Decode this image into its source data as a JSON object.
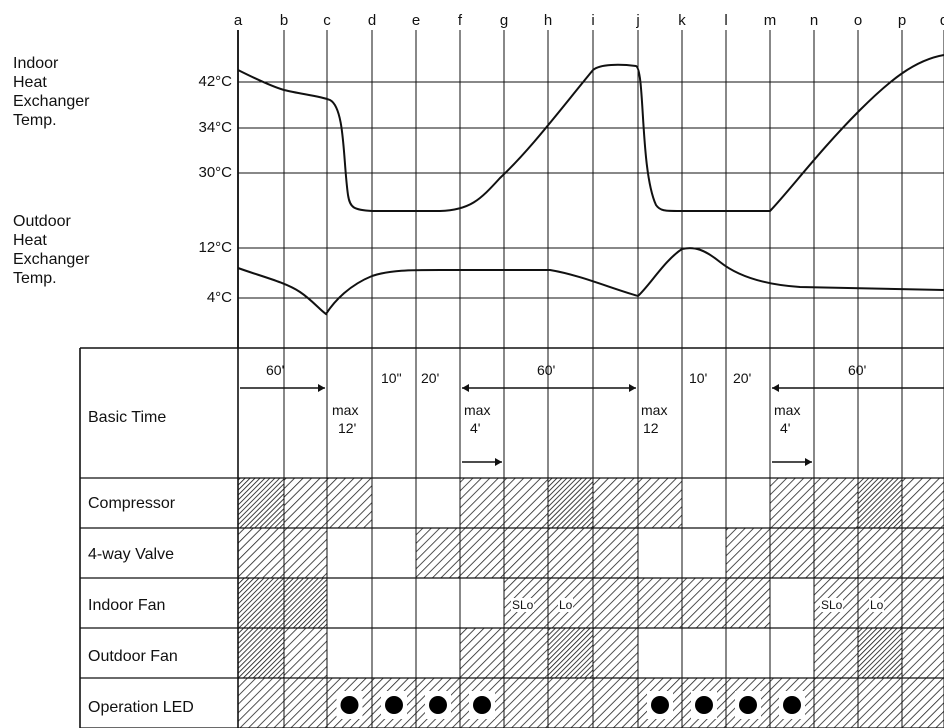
{
  "columns": [
    "a",
    "b",
    "c",
    "d",
    "e",
    "f",
    "g",
    "h",
    "i",
    "j",
    "k",
    "l",
    "m",
    "n",
    "o",
    "p",
    "q"
  ],
  "indoor": {
    "label": [
      "Indoor",
      "Heat",
      "Exchanger",
      "Temp."
    ],
    "temps": [
      "42°C",
      "34°C",
      "30°C"
    ]
  },
  "outdoor": {
    "label": [
      "Outdoor",
      "Heat",
      "Exchanger",
      "Temp."
    ],
    "temps": [
      "12°C",
      "4°C"
    ]
  },
  "rows": {
    "basic_time": "Basic Time",
    "compressor": "Compressor",
    "four_way_valve": "4-way Valve",
    "indoor_fan": "Indoor Fan",
    "outdoor_fan": "Outdoor Fan",
    "operation_led": "Operation LED"
  },
  "basic_time": {
    "t60_a": "60'",
    "max12_a1": "max",
    "max12_a2": "12'",
    "t10_a": "10\"",
    "t20_a": "20'",
    "max4_a1": "max",
    "max4_a2": "4'",
    "t60_b": "60'",
    "max12_b1": "max",
    "max12_b2": "12",
    "t10_b": "10'",
    "t20_b": "20'",
    "t60_c": "60'",
    "max4_b1": "max",
    "max4_b2": "4'"
  },
  "fan_tags": {
    "sl_a": "SLo",
    "lo_a": "Lo",
    "sl_b": "SLo",
    "lo_b": "Lo"
  },
  "led_dots": [
    "c",
    "d",
    "e",
    "f",
    "j",
    "k",
    "l",
    "m"
  ]
}
